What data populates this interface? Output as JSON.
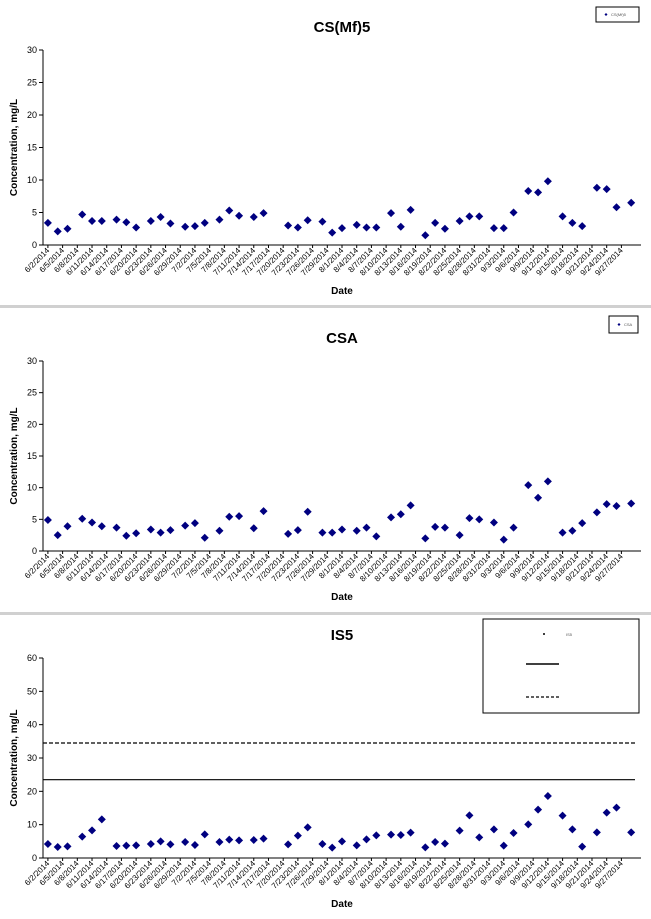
{
  "x_labels": [
    "6/2/2014",
    "6/5/2014",
    "6/8/2014",
    "6/11/2014",
    "6/14/2014",
    "6/17/2014",
    "6/20/2014",
    "6/23/2014",
    "6/26/2014",
    "6/29/2014",
    "7/2/2014",
    "7/5/2014",
    "7/8/2014",
    "7/11/2014",
    "7/14/2014",
    "7/17/2014",
    "7/20/2014",
    "7/23/2014",
    "7/26/2014",
    "7/29/2014",
    "8/1/2014",
    "8/4/2014",
    "8/7/2014",
    "8/10/2014",
    "8/13/2014",
    "8/16/2014",
    "8/19/2014",
    "8/22/2014",
    "8/25/2014",
    "8/28/2014",
    "8/31/2014",
    "9/3/2014",
    "9/6/2014",
    "9/9/2014",
    "9/12/2014",
    "9/15/2014",
    "9/18/2014",
    "9/21/2014",
    "9/24/2014",
    "9/27/2014"
  ],
  "chart_data": [
    {
      "type": "scatter",
      "title": "CS(Mf)5",
      "xlabel": "Date",
      "ylabel": "Concentration, mg/L",
      "ylim": [
        0,
        30
      ],
      "yticks": [
        "0",
        "5",
        "10",
        "15",
        "20",
        "25",
        "30"
      ],
      "legend": {
        "placement": "top-right",
        "entries": [
          "CS(Mf)5"
        ]
      },
      "series": [
        {
          "x": [
            "6/2/2014",
            "6/4/2014",
            "6/6/2014",
            "6/9/2014",
            "6/11/2014",
            "6/13/2014",
            "6/16/2014",
            "6/18/2014",
            "6/20/2014",
            "6/23/2014",
            "6/25/2014",
            "6/27/2014",
            "6/30/2014",
            "7/2/2014",
            "7/4/2014",
            "7/7/2014",
            "7/9/2014",
            "7/11/2014",
            "7/14/2014",
            "7/16/2014",
            "7/21/2014",
            "7/23/2014",
            "7/25/2014",
            "7/28/2014",
            "7/30/2014",
            "8/1/2014",
            "8/4/2014",
            "8/6/2014",
            "8/8/2014",
            "8/11/2014",
            "8/13/2014",
            "8/15/2014",
            "8/18/2014",
            "8/20/2014",
            "8/22/2014",
            "8/25/2014",
            "8/27/2014",
            "8/29/2014",
            "9/1/2014",
            "9/3/2014",
            "9/5/2014",
            "9/8/2014",
            "9/10/2014",
            "9/12/2014",
            "9/15/2014",
            "9/17/2014",
            "9/19/2014",
            "9/22/2014",
            "9/24/2014",
            "9/26/2014",
            "9/29/2014"
          ],
          "y": [
            3.4,
            2.1,
            2.5,
            4.7,
            3.7,
            3.7,
            3.9,
            3.5,
            2.7,
            3.7,
            4.3,
            3.3,
            2.8,
            2.9,
            3.4,
            3.9,
            5.3,
            4.5,
            4.3,
            4.9,
            3.0,
            2.7,
            3.8,
            3.6,
            1.9,
            2.6,
            3.1,
            2.7,
            2.7,
            4.9,
            2.8,
            5.4,
            1.5,
            3.4,
            2.5,
            3.7,
            4.4,
            4.4,
            2.6,
            2.6,
            5.0,
            8.3,
            8.1,
            9.8,
            4.4,
            3.4,
            2.9,
            8.8,
            8.6,
            5.8,
            6.5
          ]
        }
      ]
    },
    {
      "type": "scatter",
      "title": "CSA",
      "xlabel": "Date",
      "ylabel": "Concentration, mg/L",
      "ylim": [
        0,
        30
      ],
      "yticks": [
        "0",
        "5",
        "10",
        "15",
        "20",
        "25",
        "30"
      ],
      "legend": {
        "placement": "top-right",
        "entries": [
          "CSA"
        ]
      },
      "series": [
        {
          "x": [
            "6/2/2014",
            "6/4/2014",
            "6/6/2014",
            "6/9/2014",
            "6/11/2014",
            "6/13/2014",
            "6/16/2014",
            "6/18/2014",
            "6/20/2014",
            "6/23/2014",
            "6/25/2014",
            "6/27/2014",
            "6/30/2014",
            "7/2/2014",
            "7/4/2014",
            "7/7/2014",
            "7/9/2014",
            "7/11/2014",
            "7/14/2014",
            "7/16/2014",
            "7/21/2014",
            "7/23/2014",
            "7/25/2014",
            "7/28/2014",
            "7/30/2014",
            "8/1/2014",
            "8/4/2014",
            "8/6/2014",
            "8/8/2014",
            "8/11/2014",
            "8/13/2014",
            "8/15/2014",
            "8/18/2014",
            "8/20/2014",
            "8/22/2014",
            "8/25/2014",
            "8/27/2014",
            "8/29/2014",
            "9/1/2014",
            "9/3/2014",
            "9/5/2014",
            "9/8/2014",
            "9/10/2014",
            "9/12/2014",
            "9/15/2014",
            "9/17/2014",
            "9/19/2014",
            "9/22/2014",
            "9/24/2014",
            "9/26/2014",
            "9/29/2014"
          ],
          "y": [
            4.9,
            2.5,
            3.9,
            5.1,
            4.5,
            3.9,
            3.7,
            2.4,
            2.8,
            3.4,
            2.9,
            3.3,
            4.0,
            4.4,
            2.1,
            3.2,
            5.4,
            5.5,
            3.6,
            6.3,
            2.7,
            3.3,
            6.2,
            2.9,
            2.9,
            3.4,
            3.2,
            3.7,
            2.3,
            5.3,
            5.8,
            7.2,
            2.0,
            3.8,
            3.7,
            2.5,
            5.2,
            5.0,
            4.5,
            1.8,
            3.7,
            10.4,
            8.4,
            11.0,
            2.9,
            3.2,
            4.4,
            6.1,
            7.4,
            7.1,
            7.5
          ]
        }
      ]
    },
    {
      "type": "scatter",
      "title": "IS5",
      "xlabel": "Date",
      "ylabel": "Concentration, mg/L",
      "ylim": [
        0,
        60
      ],
      "yticks": [
        "0",
        "10",
        "20",
        "30",
        "40",
        "50",
        "60"
      ],
      "legend": {
        "placement": "top-right",
        "entries": [
          "IS5",
          "",
          ""
        ]
      },
      "reference_lines": [
        {
          "y": 23.5,
          "style": "solid"
        },
        {
          "y": 34.5,
          "style": "dashed"
        }
      ],
      "series": [
        {
          "x": [
            "6/2/2014",
            "6/4/2014",
            "6/6/2014",
            "6/9/2014",
            "6/11/2014",
            "6/13/2014",
            "6/16/2014",
            "6/18/2014",
            "6/20/2014",
            "6/23/2014",
            "6/25/2014",
            "6/27/2014",
            "6/30/2014",
            "7/2/2014",
            "7/4/2014",
            "7/7/2014",
            "7/9/2014",
            "7/11/2014",
            "7/14/2014",
            "7/16/2014",
            "7/21/2014",
            "7/23/2014",
            "7/25/2014",
            "7/28/2014",
            "7/30/2014",
            "8/1/2014",
            "8/4/2014",
            "8/6/2014",
            "8/8/2014",
            "8/11/2014",
            "8/13/2014",
            "8/15/2014",
            "8/18/2014",
            "8/20/2014",
            "8/22/2014",
            "8/25/2014",
            "8/27/2014",
            "8/29/2014",
            "9/1/2014",
            "9/3/2014",
            "9/5/2014",
            "9/8/2014",
            "9/10/2014",
            "9/12/2014",
            "9/15/2014",
            "9/17/2014",
            "9/19/2014",
            "9/22/2014",
            "9/24/2014",
            "9/26/2014",
            "9/29/2014"
          ],
          "y": [
            4.2,
            3.3,
            3.5,
            6.4,
            8.3,
            11.6,
            3.6,
            3.7,
            3.8,
            4.2,
            5.0,
            4.1,
            4.8,
            3.9,
            7.1,
            4.8,
            5.5,
            5.3,
            5.4,
            5.8,
            4.1,
            6.7,
            9.2,
            4.2,
            3.1,
            5.0,
            3.8,
            5.6,
            6.8,
            7.0,
            6.9,
            7.6,
            3.2,
            4.8,
            4.3,
            8.2,
            12.8,
            6.2,
            8.6,
            3.7,
            7.5,
            10.1,
            14.5,
            18.6,
            12.7,
            8.6,
            3.4,
            7.7,
            13.6,
            15.1,
            7.7
          ]
        }
      ]
    }
  ]
}
